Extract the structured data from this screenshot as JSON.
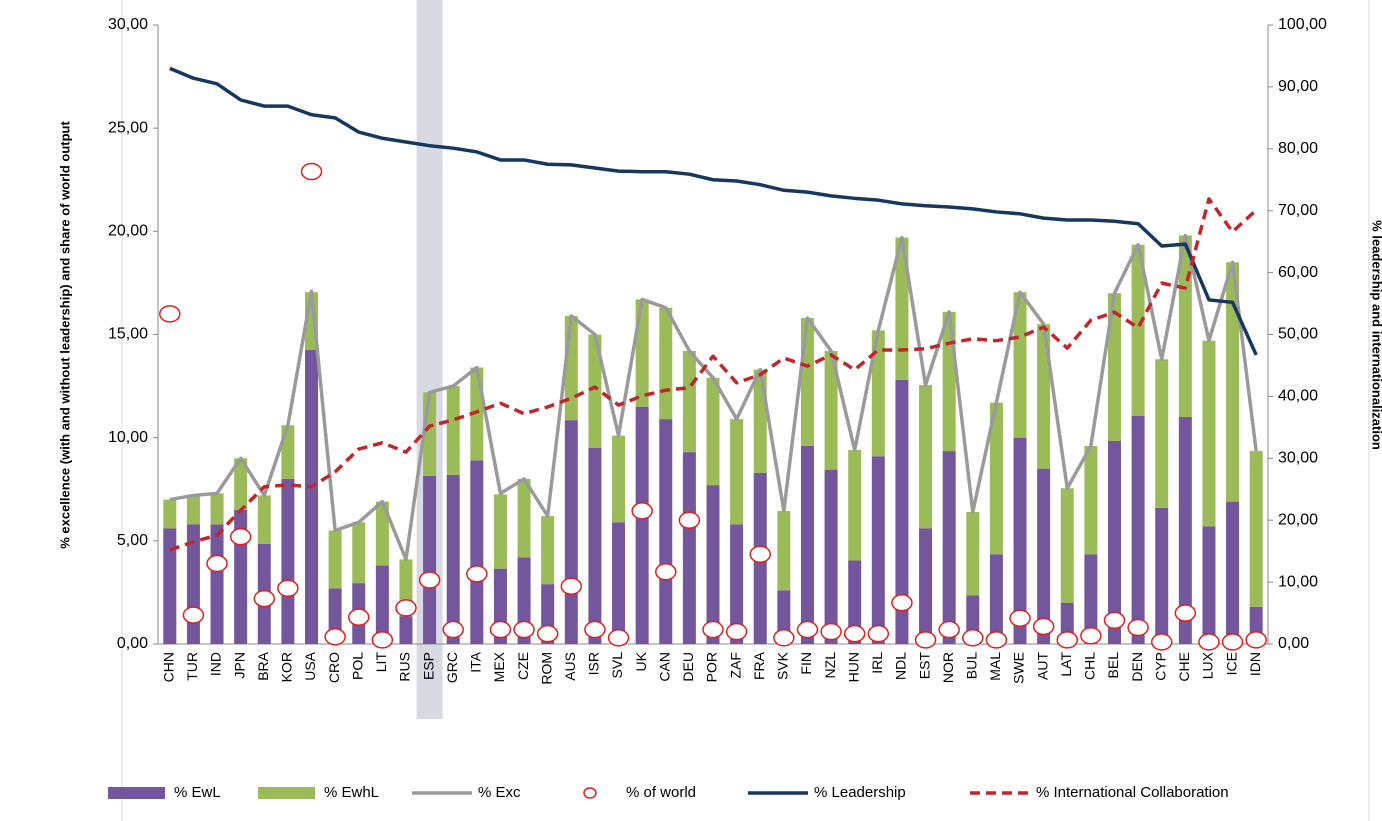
{
  "chart_data": {
    "type": "bar",
    "categories": [
      "CHN",
      "TUR",
      "IND",
      "JPN",
      "BRA",
      "KOR",
      "USA",
      "CRO",
      "POL",
      "LIT",
      "RUS",
      "ESP",
      "GRC",
      "ITA",
      "MEX",
      "CZE",
      "ROM",
      "AUS",
      "ISR",
      "SVL",
      "UK",
      "CAN",
      "DEU",
      "POR",
      "ZAF",
      "FRA",
      "SVK",
      "FIN",
      "NZL",
      "HUN",
      "IRL",
      "NDL",
      "EST",
      "NOR",
      "BUL",
      "MAL",
      "SWE",
      "AUT",
      "LAT",
      "CHL",
      "BEL",
      "DEN",
      "CYP",
      "CHE",
      "LUX",
      "ICE",
      "IDN"
    ],
    "highlight": "ESP",
    "y_label": "% excellence (with and without leadership) and share of world output",
    "y2_label": "% leadership and internationalization",
    "ylim": [
      0,
      30
    ],
    "yticks": [
      {
        "value": 0,
        "label": "0,00"
      },
      {
        "value": 5,
        "label": "5,00"
      },
      {
        "value": 10,
        "label": "10,00"
      },
      {
        "value": 15,
        "label": "15,00"
      },
      {
        "value": 20,
        "label": "20,00"
      },
      {
        "value": 25,
        "label": "25,00"
      },
      {
        "value": 30,
        "label": "30,00"
      }
    ],
    "y2lim": [
      0,
      100
    ],
    "y2ticks": [
      {
        "value": 0,
        "label": "0,00"
      },
      {
        "value": 10,
        "label": "10,00"
      },
      {
        "value": 20,
        "label": "20,00"
      },
      {
        "value": 30,
        "label": "30,00"
      },
      {
        "value": 40,
        "label": "40,00"
      },
      {
        "value": 50,
        "label": "50,00"
      },
      {
        "value": 60,
        "label": "60,00"
      },
      {
        "value": 70,
        "label": "70,00"
      },
      {
        "value": 80,
        "label": "80,00"
      },
      {
        "value": 90,
        "label": "90,00"
      },
      {
        "value": 100,
        "label": "100,00"
      }
    ],
    "series": [
      {
        "name": "% EwL",
        "type": "bar",
        "color": "#74569c",
        "values": [
          5.6,
          5.8,
          5.8,
          6.5,
          4.85,
          8.0,
          14.25,
          2.7,
          2.95,
          3.8,
          1.35,
          8.15,
          8.2,
          8.9,
          3.65,
          4.2,
          2.9,
          10.85,
          9.5,
          5.9,
          11.5,
          10.9,
          9.3,
          7.7,
          5.8,
          8.3,
          2.6,
          9.6,
          8.45,
          4.05,
          9.1,
          12.8,
          5.6,
          9.35,
          2.35,
          4.35,
          10.0,
          8.5,
          2.0,
          4.35,
          9.85,
          11.05,
          6.6,
          11.0,
          5.7,
          6.9,
          1.8
        ]
      },
      {
        "name": "% EwhL",
        "type": "bar",
        "color": "#9bbb59",
        "values": [
          1.4,
          1.4,
          1.5,
          2.5,
          2.35,
          2.6,
          2.8,
          2.8,
          2.95,
          3.1,
          2.75,
          4.05,
          4.3,
          4.5,
          3.6,
          3.8,
          3.3,
          5.05,
          5.5,
          4.2,
          5.2,
          5.4,
          4.9,
          5.2,
          5.1,
          5.0,
          3.85,
          6.2,
          5.75,
          5.35,
          6.1,
          6.9,
          6.95,
          6.75,
          4.05,
          7.35,
          7.05,
          7.0,
          5.55,
          5.25,
          7.15,
          8.3,
          7.2,
          8.8,
          9.0,
          11.6,
          7.55
        ]
      },
      {
        "name": "% Exc",
        "type": "line",
        "color": "#9a9a9a",
        "values": [
          7.0,
          7.2,
          7.3,
          9.0,
          7.2,
          10.6,
          17.1,
          5.5,
          5.9,
          6.9,
          4.1,
          12.2,
          12.5,
          13.4,
          7.3,
          8.0,
          6.2,
          15.9,
          15.0,
          10.1,
          16.7,
          16.3,
          14.2,
          12.9,
          10.9,
          13.3,
          6.45,
          15.8,
          14.2,
          9.4,
          15.2,
          19.7,
          12.55,
          16.1,
          6.4,
          11.7,
          17.05,
          15.5,
          7.55,
          9.6,
          17.0,
          19.35,
          13.8,
          19.8,
          14.7,
          18.5,
          9.35
        ]
      },
      {
        "name": "% of world",
        "type": "scatter",
        "color": "#e02020",
        "values": [
          16.0,
          1.4,
          3.9,
          5.2,
          2.2,
          2.7,
          22.9,
          0.35,
          1.3,
          0.2,
          1.75,
          3.1,
          0.7,
          3.4,
          0.7,
          0.7,
          0.5,
          2.8,
          0.7,
          0.3,
          6.45,
          3.5,
          6.0,
          0.7,
          0.6,
          4.35,
          0.3,
          0.7,
          0.6,
          0.5,
          0.5,
          2.0,
          0.2,
          0.7,
          0.3,
          0.2,
          1.25,
          0.85,
          0.2,
          0.4,
          1.15,
          0.8,
          0.1,
          1.5,
          0.1,
          0.1,
          0.2
        ]
      },
      {
        "name": "% Leadership",
        "type": "line",
        "axis": "y2",
        "color": "#17375e",
        "values": [
          93.0,
          91.4,
          90.5,
          87.9,
          86.9,
          86.9,
          85.5,
          85.0,
          82.7,
          81.7,
          81.1,
          80.5,
          80.1,
          79.5,
          78.2,
          78.2,
          77.5,
          77.4,
          76.9,
          76.4,
          76.3,
          76.3,
          75.9,
          75.0,
          74.8,
          74.2,
          73.3,
          73.0,
          72.4,
          72.0,
          71.7,
          71.1,
          70.8,
          70.6,
          70.3,
          69.8,
          69.5,
          68.8,
          68.5,
          68.5,
          68.3,
          67.9,
          64.3,
          64.6,
          55.6,
          55.2,
          46.7
        ]
      },
      {
        "name": "% International Collaboration",
        "type": "line",
        "dashed": true,
        "axis": "y2",
        "color": "#c0272d",
        "values": [
          15.2,
          16.5,
          17.6,
          21.6,
          25.4,
          25.7,
          25.4,
          27.8,
          31.5,
          32.5,
          31.0,
          35.2,
          36.2,
          37.5,
          38.9,
          37.2,
          38.3,
          39.7,
          41.5,
          38.6,
          40.1,
          41.0,
          41.4,
          46.5,
          42.2,
          43.5,
          46.2,
          44.9,
          46.7,
          44.3,
          47.5,
          47.5,
          47.7,
          48.6,
          49.3,
          49.0,
          49.6,
          51.2,
          47.8,
          52.3,
          53.6,
          51.1,
          58.3,
          57.5,
          71.9,
          66.6,
          70.1
        ]
      }
    ]
  }
}
